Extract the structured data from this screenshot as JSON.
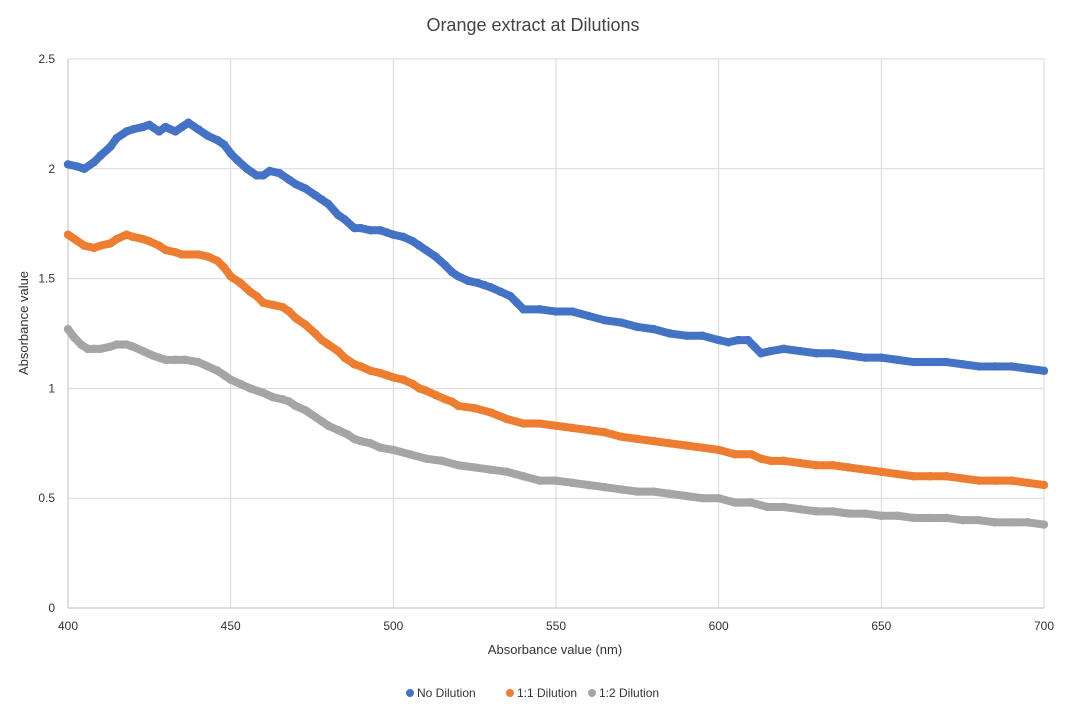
{
  "chart_data": {
    "type": "scatter",
    "title": "Orange extract at Dilutions",
    "xlabel": "Absorbance value (nm)",
    "ylabel": "Absorbance  value",
    "xlim": [
      400,
      700
    ],
    "ylim": [
      0,
      2.5
    ],
    "x_ticks": [
      400,
      450,
      500,
      550,
      600,
      650,
      700
    ],
    "y_ticks": [
      0,
      0.5,
      1,
      1.5,
      2,
      2.5
    ],
    "x_tick_labels": [
      "400",
      "450",
      "500",
      "550",
      "600",
      "650",
      "700"
    ],
    "y_tick_labels": [
      "0",
      "0.5",
      "1",
      "1.5",
      "2",
      "2.5"
    ],
    "grid": true,
    "legend_position": "bottom",
    "series": [
      {
        "name": "No Dilution",
        "color": "#4472C4",
        "points": [
          [
            400,
            2.02
          ],
          [
            403,
            2.01
          ],
          [
            405,
            2.0
          ],
          [
            408,
            2.03
          ],
          [
            410,
            2.06
          ],
          [
            413,
            2.1
          ],
          [
            415,
            2.14
          ],
          [
            418,
            2.17
          ],
          [
            420,
            2.18
          ],
          [
            423,
            2.19
          ],
          [
            425,
            2.2
          ],
          [
            428,
            2.17
          ],
          [
            430,
            2.19
          ],
          [
            433,
            2.17
          ],
          [
            435,
            2.19
          ],
          [
            437,
            2.21
          ],
          [
            440,
            2.18
          ],
          [
            443,
            2.15
          ],
          [
            446,
            2.13
          ],
          [
            448,
            2.11
          ],
          [
            450,
            2.07
          ],
          [
            452,
            2.04
          ],
          [
            455,
            2.0
          ],
          [
            458,
            1.97
          ],
          [
            460,
            1.97
          ],
          [
            462,
            1.99
          ],
          [
            465,
            1.98
          ],
          [
            468,
            1.95
          ],
          [
            470,
            1.93
          ],
          [
            473,
            1.91
          ],
          [
            476,
            1.88
          ],
          [
            478,
            1.86
          ],
          [
            480,
            1.84
          ],
          [
            483,
            1.79
          ],
          [
            485,
            1.77
          ],
          [
            488,
            1.73
          ],
          [
            490,
            1.73
          ],
          [
            493,
            1.72
          ],
          [
            496,
            1.72
          ],
          [
            498,
            1.71
          ],
          [
            500,
            1.7
          ],
          [
            503,
            1.69
          ],
          [
            506,
            1.67
          ],
          [
            508,
            1.65
          ],
          [
            510,
            1.63
          ],
          [
            513,
            1.6
          ],
          [
            516,
            1.56
          ],
          [
            518,
            1.53
          ],
          [
            520,
            1.51
          ],
          [
            523,
            1.49
          ],
          [
            526,
            1.48
          ],
          [
            528,
            1.47
          ],
          [
            530,
            1.46
          ],
          [
            533,
            1.44
          ],
          [
            536,
            1.42
          ],
          [
            538,
            1.39
          ],
          [
            540,
            1.36
          ],
          [
            545,
            1.36
          ],
          [
            550,
            1.35
          ],
          [
            555,
            1.35
          ],
          [
            560,
            1.33
          ],
          [
            565,
            1.31
          ],
          [
            570,
            1.3
          ],
          [
            575,
            1.28
          ],
          [
            580,
            1.27
          ],
          [
            585,
            1.25
          ],
          [
            590,
            1.24
          ],
          [
            595,
            1.24
          ],
          [
            600,
            1.22
          ],
          [
            603,
            1.21
          ],
          [
            606,
            1.22
          ],
          [
            609,
            1.22
          ],
          [
            611,
            1.19
          ],
          [
            613,
            1.16
          ],
          [
            616,
            1.17
          ],
          [
            620,
            1.18
          ],
          [
            625,
            1.17
          ],
          [
            630,
            1.16
          ],
          [
            635,
            1.16
          ],
          [
            640,
            1.15
          ],
          [
            645,
            1.14
          ],
          [
            650,
            1.14
          ],
          [
            655,
            1.13
          ],
          [
            660,
            1.12
          ],
          [
            665,
            1.12
          ],
          [
            670,
            1.12
          ],
          [
            675,
            1.11
          ],
          [
            680,
            1.1
          ],
          [
            685,
            1.1
          ],
          [
            690,
            1.1
          ],
          [
            695,
            1.09
          ],
          [
            700,
            1.08
          ]
        ]
      },
      {
        "name": "1:1 Dilution",
        "color": "#ED7D31",
        "points": [
          [
            400,
            1.7
          ],
          [
            402,
            1.68
          ],
          [
            405,
            1.65
          ],
          [
            408,
            1.64
          ],
          [
            410,
            1.65
          ],
          [
            413,
            1.66
          ],
          [
            415,
            1.68
          ],
          [
            418,
            1.7
          ],
          [
            420,
            1.69
          ],
          [
            423,
            1.68
          ],
          [
            425,
            1.67
          ],
          [
            428,
            1.65
          ],
          [
            430,
            1.63
          ],
          [
            433,
            1.62
          ],
          [
            435,
            1.61
          ],
          [
            440,
            1.61
          ],
          [
            443,
            1.6
          ],
          [
            446,
            1.58
          ],
          [
            448,
            1.55
          ],
          [
            450,
            1.51
          ],
          [
            453,
            1.48
          ],
          [
            456,
            1.44
          ],
          [
            458,
            1.42
          ],
          [
            460,
            1.39
          ],
          [
            463,
            1.38
          ],
          [
            466,
            1.37
          ],
          [
            468,
            1.35
          ],
          [
            470,
            1.32
          ],
          [
            473,
            1.29
          ],
          [
            476,
            1.25
          ],
          [
            478,
            1.22
          ],
          [
            480,
            1.2
          ],
          [
            483,
            1.17
          ],
          [
            485,
            1.14
          ],
          [
            488,
            1.11
          ],
          [
            490,
            1.1
          ],
          [
            493,
            1.08
          ],
          [
            496,
            1.07
          ],
          [
            498,
            1.06
          ],
          [
            500,
            1.05
          ],
          [
            503,
            1.04
          ],
          [
            506,
            1.02
          ],
          [
            508,
            1.0
          ],
          [
            510,
            0.99
          ],
          [
            513,
            0.97
          ],
          [
            516,
            0.95
          ],
          [
            518,
            0.94
          ],
          [
            520,
            0.92
          ],
          [
            525,
            0.91
          ],
          [
            530,
            0.89
          ],
          [
            535,
            0.86
          ],
          [
            540,
            0.84
          ],
          [
            545,
            0.84
          ],
          [
            550,
            0.83
          ],
          [
            555,
            0.82
          ],
          [
            560,
            0.81
          ],
          [
            565,
            0.8
          ],
          [
            570,
            0.78
          ],
          [
            575,
            0.77
          ],
          [
            580,
            0.76
          ],
          [
            585,
            0.75
          ],
          [
            590,
            0.74
          ],
          [
            595,
            0.73
          ],
          [
            600,
            0.72
          ],
          [
            605,
            0.7
          ],
          [
            610,
            0.7
          ],
          [
            613,
            0.68
          ],
          [
            616,
            0.67
          ],
          [
            620,
            0.67
          ],
          [
            625,
            0.66
          ],
          [
            630,
            0.65
          ],
          [
            635,
            0.65
          ],
          [
            640,
            0.64
          ],
          [
            645,
            0.63
          ],
          [
            650,
            0.62
          ],
          [
            655,
            0.61
          ],
          [
            660,
            0.6
          ],
          [
            665,
            0.6
          ],
          [
            670,
            0.6
          ],
          [
            675,
            0.59
          ],
          [
            680,
            0.58
          ],
          [
            685,
            0.58
          ],
          [
            690,
            0.58
          ],
          [
            695,
            0.57
          ],
          [
            700,
            0.56
          ]
        ]
      },
      {
        "name": "1:2 Dilution",
        "color": "#A5A5A5",
        "points": [
          [
            400,
            1.27
          ],
          [
            402,
            1.23
          ],
          [
            404,
            1.2
          ],
          [
            406,
            1.18
          ],
          [
            408,
            1.18
          ],
          [
            410,
            1.18
          ],
          [
            413,
            1.19
          ],
          [
            415,
            1.2
          ],
          [
            418,
            1.2
          ],
          [
            420,
            1.19
          ],
          [
            423,
            1.17
          ],
          [
            426,
            1.15
          ],
          [
            428,
            1.14
          ],
          [
            430,
            1.13
          ],
          [
            433,
            1.13
          ],
          [
            436,
            1.13
          ],
          [
            440,
            1.12
          ],
          [
            443,
            1.1
          ],
          [
            446,
            1.08
          ],
          [
            448,
            1.06
          ],
          [
            450,
            1.04
          ],
          [
            453,
            1.02
          ],
          [
            456,
            1.0
          ],
          [
            460,
            0.98
          ],
          [
            463,
            0.96
          ],
          [
            466,
            0.95
          ],
          [
            468,
            0.94
          ],
          [
            470,
            0.92
          ],
          [
            473,
            0.9
          ],
          [
            476,
            0.87
          ],
          [
            478,
            0.85
          ],
          [
            480,
            0.83
          ],
          [
            483,
            0.81
          ],
          [
            486,
            0.79
          ],
          [
            488,
            0.77
          ],
          [
            490,
            0.76
          ],
          [
            493,
            0.75
          ],
          [
            496,
            0.73
          ],
          [
            500,
            0.72
          ],
          [
            505,
            0.7
          ],
          [
            510,
            0.68
          ],
          [
            515,
            0.67
          ],
          [
            520,
            0.65
          ],
          [
            525,
            0.64
          ],
          [
            530,
            0.63
          ],
          [
            535,
            0.62
          ],
          [
            540,
            0.6
          ],
          [
            545,
            0.58
          ],
          [
            550,
            0.58
          ],
          [
            555,
            0.57
          ],
          [
            560,
            0.56
          ],
          [
            565,
            0.55
          ],
          [
            570,
            0.54
          ],
          [
            575,
            0.53
          ],
          [
            580,
            0.53
          ],
          [
            585,
            0.52
          ],
          [
            590,
            0.51
          ],
          [
            595,
            0.5
          ],
          [
            600,
            0.5
          ],
          [
            605,
            0.48
          ],
          [
            610,
            0.48
          ],
          [
            615,
            0.46
          ],
          [
            620,
            0.46
          ],
          [
            625,
            0.45
          ],
          [
            630,
            0.44
          ],
          [
            635,
            0.44
          ],
          [
            640,
            0.43
          ],
          [
            645,
            0.43
          ],
          [
            650,
            0.42
          ],
          [
            655,
            0.42
          ],
          [
            660,
            0.41
          ],
          [
            665,
            0.41
          ],
          [
            670,
            0.41
          ],
          [
            675,
            0.4
          ],
          [
            680,
            0.4
          ],
          [
            685,
            0.39
          ],
          [
            690,
            0.39
          ],
          [
            695,
            0.39
          ],
          [
            700,
            0.38
          ]
        ]
      }
    ]
  }
}
